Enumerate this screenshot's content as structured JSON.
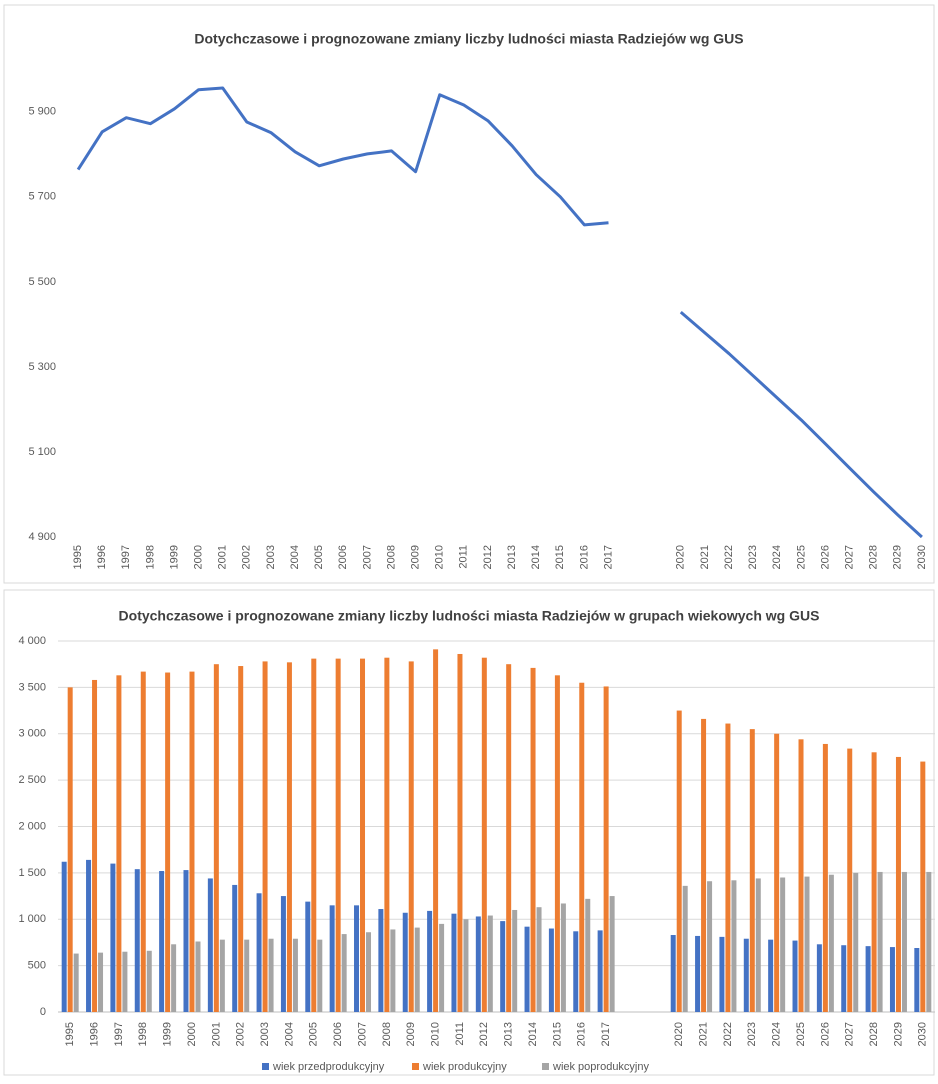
{
  "chart_data": [
    {
      "type": "line",
      "title": "Dotychczasowe i prognozowane zmiany liczby ludności miasta Radziejów wg GUS",
      "categories": [
        "1995",
        "1996",
        "1997",
        "1998",
        "1999",
        "2000",
        "2001",
        "2002",
        "2003",
        "2004",
        "2005",
        "2006",
        "2007",
        "2008",
        "2009",
        "2010",
        "2011",
        "2012",
        "2013",
        "2014",
        "2015",
        "2016",
        "2017",
        null,
        null,
        "2020",
        "2021",
        "2022",
        "2023",
        "2024",
        "2025",
        "2026",
        "2027",
        "2028",
        "2029",
        "2030"
      ],
      "values": [
        5764,
        5853,
        5886,
        5872,
        5907,
        5952,
        5956,
        5876,
        5851,
        5806,
        5773,
        5789,
        5801,
        5808,
        5759,
        5940,
        5916,
        5879,
        5820,
        5752,
        5700,
        5634,
        5639,
        null,
        null,
        5429,
        5380,
        5331,
        5279,
        5227,
        5175,
        5119,
        5062,
        5006,
        4952,
        4900
      ],
      "color": "#4472c4",
      "ylim": [
        4900,
        6050
      ],
      "yticks": [
        {
          "value": 4900,
          "label": "4 900"
        },
        {
          "value": 5100,
          "label": "5 100"
        },
        {
          "value": 5300,
          "label": "5 300"
        },
        {
          "value": 5500,
          "label": "5 500"
        },
        {
          "value": 5700,
          "label": "5 700"
        },
        {
          "value": 5900,
          "label": "5 900"
        }
      ],
      "grid": false
    },
    {
      "type": "bar",
      "title": "Dotychczasowe i prognozowane zmiany liczby ludności miasta Radziejów w grupach wiekowych wg GUS",
      "categories": [
        "1995",
        "1996",
        "1997",
        "1998",
        "1999",
        "2000",
        "2001",
        "2002",
        "2003",
        "2004",
        "2005",
        "2006",
        "2007",
        "2008",
        "2009",
        "2010",
        "2011",
        "2012",
        "2013",
        "2014",
        "2015",
        "2016",
        "2017",
        null,
        null,
        "2020",
        "2021",
        "2022",
        "2023",
        "2024",
        "2025",
        "2026",
        "2027",
        "2028",
        "2029",
        "2030"
      ],
      "series": [
        {
          "name": "wiek przedprodukcyjny",
          "color": "#4472c4",
          "values": [
            1620,
            1640,
            1600,
            1540,
            1520,
            1530,
            1440,
            1370,
            1280,
            1250,
            1190,
            1150,
            1150,
            1110,
            1070,
            1090,
            1060,
            1030,
            980,
            920,
            900,
            870,
            880,
            null,
            null,
            830,
            820,
            810,
            790,
            780,
            770,
            730,
            720,
            710,
            700,
            690
          ]
        },
        {
          "name": "wiek produkcyjny",
          "color": "#ed7d31",
          "values": [
            3500,
            3580,
            3630,
            3670,
            3660,
            3670,
            3750,
            3730,
            3780,
            3770,
            3810,
            3810,
            3810,
            3820,
            3780,
            3910,
            3860,
            3820,
            3750,
            3710,
            3630,
            3550,
            3510,
            null,
            null,
            3250,
            3160,
            3110,
            3050,
            3000,
            2940,
            2890,
            2840,
            2800,
            2750,
            2700
          ]
        },
        {
          "name": "wiek poprodukcyjny",
          "color": "#a5a5a5",
          "values": [
            630,
            640,
            650,
            660,
            730,
            760,
            780,
            780,
            790,
            790,
            780,
            840,
            860,
            890,
            910,
            950,
            1000,
            1040,
            1100,
            1130,
            1170,
            1220,
            1250,
            null,
            null,
            1360,
            1410,
            1420,
            1440,
            1450,
            1460,
            1480,
            1500,
            1510,
            1510,
            1510
          ]
        }
      ],
      "ylim": [
        0,
        4000
      ],
      "yticks": [
        0,
        500,
        {
          "value": 1000,
          "label": "1 000"
        },
        {
          "value": 1500,
          "label": "1 500"
        },
        {
          "value": 2000,
          "label": "2 000"
        },
        {
          "value": 2500,
          "label": "2 500"
        },
        {
          "value": 3000,
          "label": "3 000"
        },
        {
          "value": 3500,
          "label": "3 500"
        },
        {
          "value": 4000,
          "label": "4 000"
        }
      ],
      "grid": true,
      "legend": "bottom"
    }
  ]
}
